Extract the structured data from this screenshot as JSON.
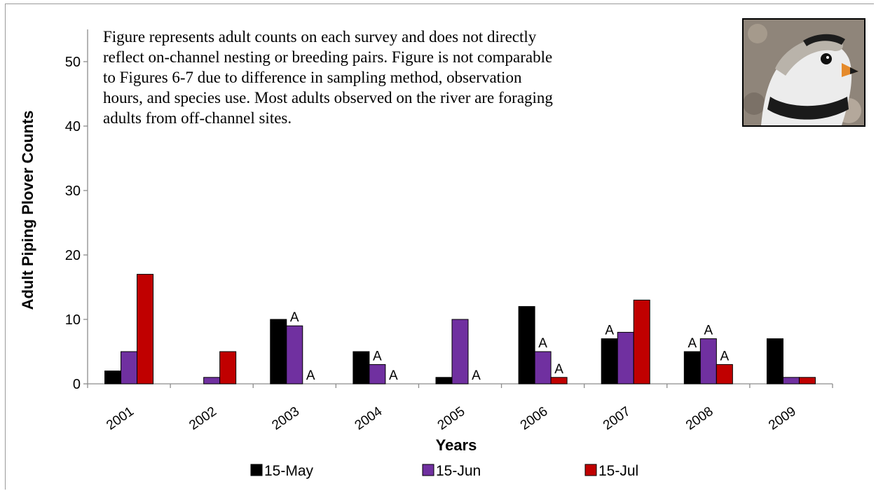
{
  "chart_data": {
    "type": "bar",
    "title": "",
    "xlabel": "Years",
    "ylabel": "Adult Piping Plover Counts",
    "ylim": [
      0,
      55
    ],
    "yticks": [
      0,
      10,
      20,
      30,
      40,
      50
    ],
    "grid": false,
    "legend_position": "bottom",
    "categories": [
      "2001",
      "2002",
      "2003",
      "2004",
      "2005",
      "2006",
      "2007",
      "2008",
      "2009"
    ],
    "series": [
      {
        "name": "15-May",
        "color": "#000000",
        "values": [
          2,
          0,
          10,
          5,
          1,
          12,
          7,
          5,
          7
        ],
        "annotations": [
          "",
          "",
          "",
          "",
          "",
          "",
          "A",
          "A",
          ""
        ]
      },
      {
        "name": "15-Jun",
        "color": "#7030a0",
        "values": [
          5,
          1,
          9,
          3,
          10,
          5,
          8,
          7,
          1
        ],
        "annotations": [
          "",
          "",
          "A",
          "A",
          "",
          "A",
          "",
          "A",
          ""
        ]
      },
      {
        "name": "15-Jul",
        "color": "#c00000",
        "values": [
          17,
          5,
          0,
          0,
          0,
          1,
          13,
          3,
          1
        ],
        "annotations": [
          "",
          "",
          "A",
          "A",
          "A",
          "A",
          "",
          "A",
          ""
        ]
      }
    ],
    "note": "Figure represents adult counts on each survey and does not directly reflect on-channel nesting or breeding pairs. Figure is not comparable to Figures 6-7 due to difference in sampling method, observation hours, and species use. Most adults observed on the river are foraging adults from off-channel sites."
  },
  "photo": {
    "subject": "piping-plover-photo"
  }
}
